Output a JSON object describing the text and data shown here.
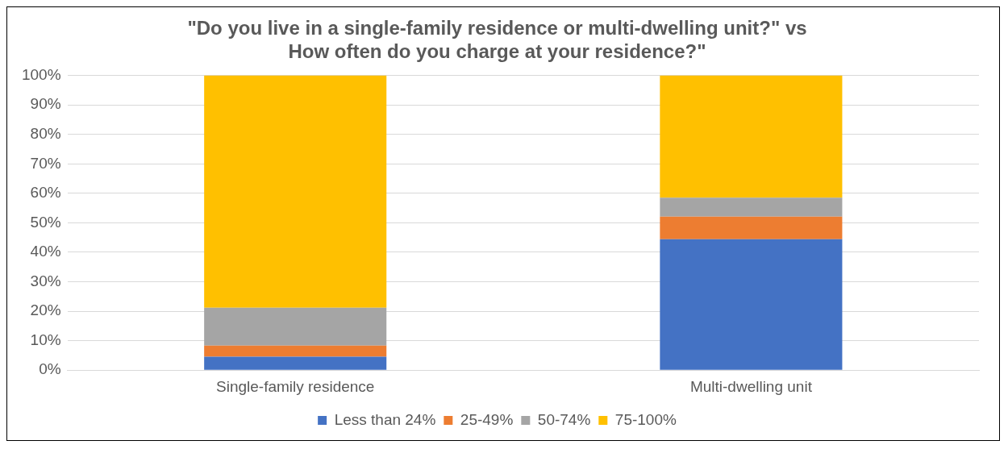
{
  "chart_data": {
    "type": "bar",
    "stacked": true,
    "title": [
      "\"Do you live in a single-family residence or multi-dwelling unit?\" vs",
      "How often do you charge at your residence?\""
    ],
    "categories": [
      "Single-family residence",
      "Multi-dwelling unit"
    ],
    "series": [
      {
        "name": "Less than 24%",
        "color": "#4472c4",
        "values": [
          4.6,
          44.4
        ]
      },
      {
        "name": "25-49%",
        "color": "#ed7d31",
        "values": [
          3.7,
          7.7
        ]
      },
      {
        "name": "50-74%",
        "color": "#a5a5a5",
        "values": [
          12.9,
          6.4
        ]
      },
      {
        "name": "75-100%",
        "color": "#ffc000",
        "values": [
          78.8,
          41.5
        ]
      }
    ],
    "ylim": [
      0,
      100
    ],
    "yticks": [
      {
        "value": 0,
        "label": "0%"
      },
      {
        "value": 10,
        "label": "10%"
      },
      {
        "value": 20,
        "label": "20%"
      },
      {
        "value": 30,
        "label": "30%"
      },
      {
        "value": 40,
        "label": "40%"
      },
      {
        "value": 50,
        "label": "50%"
      },
      {
        "value": 60,
        "label": "60%"
      },
      {
        "value": 70,
        "label": "70%"
      },
      {
        "value": 80,
        "label": "80%"
      },
      {
        "value": 90,
        "label": "90%"
      },
      {
        "value": 100,
        "label": "100%"
      }
    ],
    "grid": "y",
    "legend": "bottom"
  }
}
